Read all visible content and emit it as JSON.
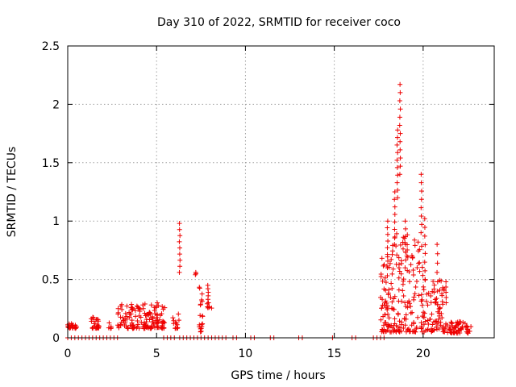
{
  "chart_data": {
    "type": "scatter",
    "title": "Day 310 of 2022, SRMTID for receiver coco",
    "xlabel": "GPS time / hours",
    "ylabel": "SRMTID / TECUs",
    "xlim": [
      0,
      24
    ],
    "ylim": [
      0,
      2.5
    ],
    "xticks": [
      0,
      5,
      10,
      15,
      20
    ],
    "yticks": [
      0,
      0.5,
      1,
      1.5,
      2,
      2.5
    ],
    "xtick_labels": [
      "0",
      "5",
      "10",
      "15",
      "20"
    ],
    "ytick_labels": [
      "0",
      "0.5",
      "1",
      "1.5",
      "2",
      "2.5"
    ],
    "grid": true,
    "marker": "+",
    "series": [
      {
        "name": "SRMTID",
        "color": "#ee0000",
        "clusters": [
          {
            "x": [
              0.0,
              0.5
            ],
            "y": [
              0.08,
              0.13
            ],
            "n": 25
          },
          {
            "x": [
              1.3,
              1.8
            ],
            "y": [
              0.08,
              0.18
            ],
            "n": 25
          },
          {
            "x": [
              2.3,
              2.5
            ],
            "y": [
              0.08,
              0.13
            ],
            "n": 6
          },
          {
            "x": [
              2.8,
              5.5
            ],
            "y": [
              0.08,
              0.3
            ],
            "n": 150
          },
          {
            "x": [
              5.9,
              6.3
            ],
            "y": [
              0.08,
              0.22
            ],
            "n": 15
          },
          {
            "x": [
              7.4,
              7.6
            ],
            "y": [
              0.05,
              0.45
            ],
            "n": 20
          },
          {
            "x": [
              7.8,
              8.1
            ],
            "y": [
              0.25,
              0.3
            ],
            "n": 6
          },
          {
            "x": [
              17.6,
              18.2
            ],
            "y": [
              0.05,
              0.7
            ],
            "n": 60
          },
          {
            "x": [
              18.2,
              19.0
            ],
            "y": [
              0.05,
              0.9
            ],
            "n": 70
          },
          {
            "x": [
              19.0,
              20.0
            ],
            "y": [
              0.05,
              0.9
            ],
            "n": 70
          },
          {
            "x": [
              20.0,
              21.2
            ],
            "y": [
              0.05,
              0.5
            ],
            "n": 80
          },
          {
            "x": [
              21.2,
              22.7
            ],
            "y": [
              0.04,
              0.14
            ],
            "n": 60
          }
        ],
        "vertical_runs": [
          {
            "x": 6.3,
            "y": [
              0.56,
              0.98
            ],
            "n": 9
          },
          {
            "x": 7.2,
            "y": [
              0.54,
              0.56
            ],
            "n": 3
          },
          {
            "x": 7.9,
            "y": [
              0.3,
              0.45
            ],
            "n": 6
          },
          {
            "x": 18.0,
            "y": [
              0.6,
              1.0
            ],
            "n": 8
          },
          {
            "x": 18.4,
            "y": [
              0.8,
              1.25
            ],
            "n": 8
          },
          {
            "x": 18.55,
            "y": [
              1.2,
              1.78
            ],
            "n": 10
          },
          {
            "x": 18.7,
            "y": [
              1.4,
              2.17
            ],
            "n": 12
          },
          {
            "x": 19.0,
            "y": [
              0.6,
              1.0
            ],
            "n": 7
          },
          {
            "x": 19.9,
            "y": [
              0.9,
              1.4
            ],
            "n": 8
          },
          {
            "x": 20.1,
            "y": [
              0.5,
              1.02
            ],
            "n": 8
          },
          {
            "x": 20.8,
            "y": [
              0.4,
              0.8
            ],
            "n": 6
          },
          {
            "x": 21.3,
            "y": [
              0.3,
              0.48
            ],
            "n": 5
          }
        ],
        "zero_segments": [
          [
            0.0,
            2.9
          ],
          [
            5.4,
            6.0
          ],
          [
            6.3,
            8.3
          ],
          [
            8.5,
            8.9
          ],
          [
            9.3,
            9.6
          ],
          [
            10.3,
            10.5
          ],
          [
            11.4,
            11.6
          ],
          [
            13.0,
            13.2
          ],
          [
            14.9,
            15.0
          ],
          [
            16.0,
            16.3
          ],
          [
            17.2,
            17.9
          ]
        ],
        "zero_spacing": 0.2
      }
    ]
  }
}
